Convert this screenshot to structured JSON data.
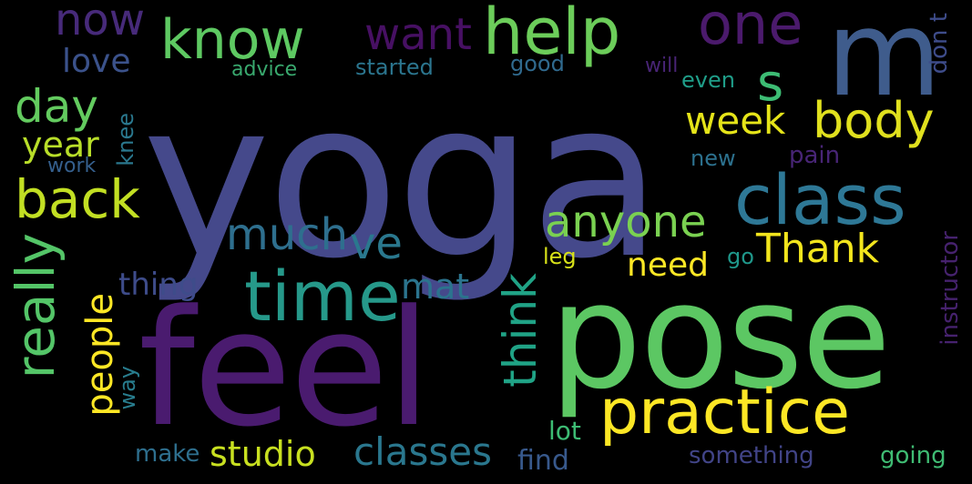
{
  "words": {
    "yoga": {
      "text": "yoga",
      "color": "#45498b"
    },
    "pose": {
      "text": "pose",
      "color": "#5cc763"
    },
    "feel": {
      "text": "feel",
      "color": "#4a1b6f"
    },
    "m": {
      "text": "m",
      "color": "#3f5c8c"
    },
    "practice": {
      "text": "practice",
      "color": "#fde725"
    },
    "class": {
      "text": "class",
      "color": "#2e7896"
    },
    "time": {
      "text": "time",
      "color": "#26998a"
    },
    "help": {
      "text": "help",
      "color": "#6ccd5a"
    },
    "know": {
      "text": "know",
      "color": "#5ec962"
    },
    "one": {
      "text": "one",
      "color": "#4b1a6c"
    },
    "body": {
      "text": "body",
      "color": "#e0e01e"
    },
    "back": {
      "text": "back",
      "color": "#c2df23"
    },
    "anyone": {
      "text": "anyone",
      "color": "#7ad151"
    },
    "thank": {
      "text": "Thank",
      "color": "#f2e51d"
    },
    "week": {
      "text": "week",
      "color": "#e5e419"
    },
    "much": {
      "text": "much",
      "color": "#2e6f8e"
    },
    "ve": {
      "text": "ve",
      "color": "#2a788e"
    },
    "want": {
      "text": "want",
      "color": "#471063"
    },
    "s": {
      "text": "s",
      "color": "#3dbc74"
    },
    "day": {
      "text": "day",
      "color": "#63cb5f"
    },
    "now": {
      "text": "now",
      "color": "#472a7a"
    },
    "love": {
      "text": "love",
      "color": "#3b528b"
    },
    "year": {
      "text": "year",
      "color": "#b8de29"
    },
    "really": {
      "text": "really",
      "color": "#54c568"
    },
    "people": {
      "text": "people",
      "color": "#fde725"
    },
    "think": {
      "text": "think",
      "color": "#20a386"
    },
    "need": {
      "text": "need",
      "color": "#fde725"
    },
    "mat": {
      "text": "mat",
      "color": "#2b748e"
    },
    "thing": {
      "text": "thing",
      "color": "#3e4c8a"
    },
    "studio": {
      "text": "studio",
      "color": "#c8e020"
    },
    "classes": {
      "text": "classes",
      "color": "#2a778e"
    },
    "find": {
      "text": "find",
      "color": "#38598c"
    },
    "lot": {
      "text": "lot",
      "color": "#3dbc74"
    },
    "leg": {
      "text": "leg",
      "color": "#d8e219"
    },
    "go": {
      "text": "go",
      "color": "#1f988b"
    },
    "new": {
      "text": "new",
      "color": "#2c718e"
    },
    "pain": {
      "text": "pain",
      "color": "#482576"
    },
    "even": {
      "text": "even",
      "color": "#1f9e89"
    },
    "will": {
      "text": "will",
      "color": "#482475"
    },
    "good": {
      "text": "good",
      "color": "#306a8e"
    },
    "started": {
      "text": "started",
      "color": "#2b758e"
    },
    "advice": {
      "text": "advice",
      "color": "#39a96e"
    },
    "work": {
      "text": "work",
      "color": "#355f8d"
    },
    "make": {
      "text": "make",
      "color": "#2e6f8e"
    },
    "something": {
      "text": "something",
      "color": "#414487"
    },
    "going": {
      "text": "going",
      "color": "#3fbc73"
    },
    "knee": {
      "text": "knee",
      "color": "#2a788e"
    },
    "way": {
      "text": "way",
      "color": "#287d8e"
    },
    "dont": {
      "text": "don t",
      "color": "#3e4c8a"
    },
    "instructor": {
      "text": "instructor",
      "color": "#46226e"
    }
  }
}
